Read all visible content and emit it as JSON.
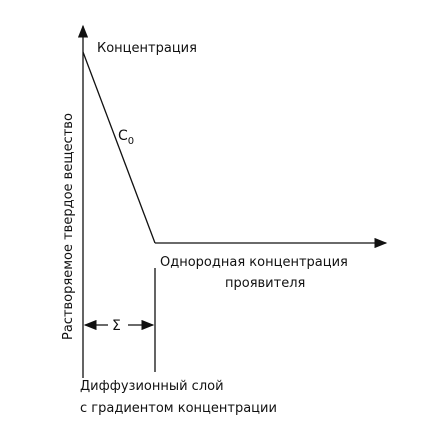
{
  "axis_labels": {
    "vertical": "Растворяемое твердое вещество",
    "concentration": "Концентрация"
  },
  "curve_label": {
    "symbol": "C",
    "subscript": "0"
  },
  "uniform_label": {
    "line1": "Однородная концентрация",
    "line2": "проявителя"
  },
  "layer_symbol": "Σ",
  "layer_label": {
    "line1": "Диффузионный слой",
    "line2": "с градиентом концентрации"
  }
}
